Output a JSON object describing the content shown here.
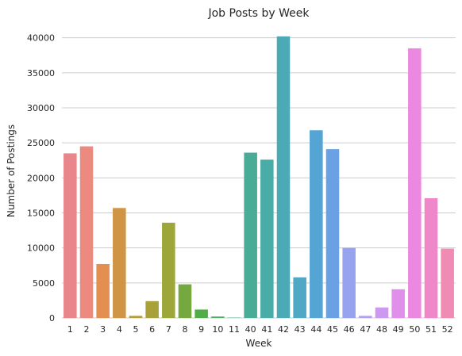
{
  "chart_data": {
    "type": "bar",
    "title": "Job Posts by Week",
    "xlabel": "Week",
    "ylabel": "Number of Postings",
    "ylim": [
      0,
      42000
    ],
    "yticks": [
      0,
      5000,
      10000,
      15000,
      20000,
      25000,
      30000,
      35000,
      40000
    ],
    "grid": "horizontal",
    "categories": [
      "1",
      "2",
      "3",
      "4",
      "5",
      "6",
      "7",
      "8",
      "9",
      "10",
      "11",
      "40",
      "41",
      "42",
      "43",
      "44",
      "45",
      "46",
      "47",
      "48",
      "49",
      "50",
      "51",
      "52"
    ],
    "values": [
      23500,
      24500,
      7700,
      15700,
      300,
      2400,
      13600,
      4800,
      1200,
      200,
      50,
      23600,
      22600,
      40200,
      5800,
      26800,
      24100,
      10000,
      300,
      1500,
      4100,
      38500,
      17100,
      9900
    ],
    "colors": [
      "#e8868b",
      "#ed8a80",
      "#e48f4f",
      "#cf9444",
      "#b59b3c",
      "#a9a037",
      "#9ca639",
      "#75a93f",
      "#52ad48",
      "#4dad69",
      "#49ae84",
      "#49ac97",
      "#4aaca7",
      "#4ca9b6",
      "#4fa8c4",
      "#54a4d4",
      "#6aa0e4",
      "#97a3ee",
      "#b3a1f0",
      "#cc98f0",
      "#e090eb",
      "#eb88df",
      "#ee88c9",
      "#f08bb3"
    ]
  }
}
